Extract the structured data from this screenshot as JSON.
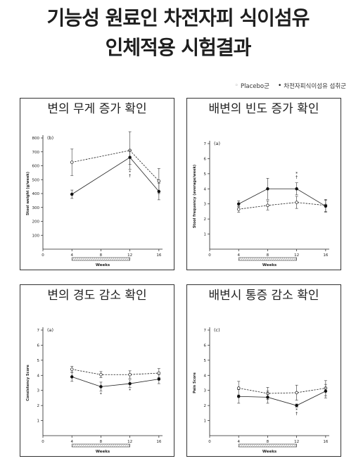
{
  "header": {
    "title_line1": "기능성 원료인 차전자피 식이섬유",
    "title_line2": "인체적용 시험결과"
  },
  "legend": {
    "placebo_marker": "◦",
    "placebo_label": "Placebo군",
    "treatment_marker": "•",
    "treatment_label": "차전자피식이섬유 섭취군"
  },
  "panels": [
    {
      "title": "변의 무게 증가 확인"
    },
    {
      "title": "배변의 빈도 증가 확인"
    },
    {
      "title": "변의 경도 감소 확인"
    },
    {
      "title": "배변시 통증 감소 확인"
    }
  ],
  "chart_data": [
    {
      "type": "line",
      "panel_label": "(b)",
      "xlabel": "Weeks",
      "ylabel": "Stool weight (g/week)",
      "xticks": [
        0,
        4,
        8,
        12,
        16
      ],
      "yticks": [
        100,
        200,
        300,
        400,
        500,
        600,
        700,
        800
      ],
      "xlim": [
        0,
        16.5
      ],
      "ylim": [
        0,
        800
      ],
      "treatment_period": [
        4,
        12
      ],
      "series": [
        {
          "name": "Placebo군",
          "marker": "open",
          "style": "dashed",
          "x": [
            4,
            12,
            16
          ],
          "y": [
            625,
            710,
            490
          ],
          "err": [
            95,
            135,
            90
          ]
        },
        {
          "name": "차전자피식이섬유 섭취군",
          "marker": "filled",
          "style": "solid",
          "x": [
            4,
            12,
            16
          ],
          "y": [
            395,
            660,
            415
          ],
          "err": [
            30,
            50,
            60
          ]
        }
      ],
      "annotations": [
        {
          "x": 12,
          "text": "*",
          "dy": 0
        },
        {
          "x": 12,
          "text": "†",
          "dy": 1
        }
      ]
    },
    {
      "type": "line",
      "panel_label": "(a)",
      "xlabel": "Weeks",
      "ylabel": "Stool frequency (average/week)",
      "xticks": [
        0,
        4,
        8,
        12,
        16
      ],
      "yticks": [
        1,
        2,
        3,
        4,
        5,
        6,
        7
      ],
      "xlim": [
        0,
        16.5
      ],
      "ylim": [
        0,
        7
      ],
      "treatment_period": [
        4,
        12
      ],
      "series": [
        {
          "name": "Placebo군",
          "marker": "open",
          "style": "dashed",
          "x": [
            4,
            8,
            12,
            16
          ],
          "y": [
            2.65,
            2.9,
            3.1,
            2.9
          ],
          "err": [
            0.2,
            0.3,
            0.4,
            0.4
          ]
        },
        {
          "name": "차전자피식이섬유 섭취군",
          "marker": "filled",
          "style": "solid",
          "x": [
            4,
            8,
            12,
            16
          ],
          "y": [
            3.0,
            4.0,
            4.0,
            2.85
          ],
          "err": [
            0.2,
            0.7,
            0.4,
            0.4
          ]
        }
      ],
      "annotations": [
        {
          "x": 12,
          "text": "*",
          "dy": -2
        },
        {
          "x": 12,
          "text": "†",
          "dy": -1
        }
      ]
    },
    {
      "type": "line",
      "panel_label": "(a)",
      "xlabel": "Weeks",
      "ylabel": "Consistency Score",
      "xticks": [
        0,
        4,
        8,
        12,
        16
      ],
      "yticks": [
        1,
        2,
        3,
        4,
        5,
        6,
        7
      ],
      "xlim": [
        0,
        16.5
      ],
      "ylim": [
        0,
        7
      ],
      "treatment_period": [
        4,
        12
      ],
      "series": [
        {
          "name": "Placebo군",
          "marker": "open",
          "style": "dashed",
          "x": [
            4,
            8,
            12,
            16
          ],
          "y": [
            4.4,
            4.05,
            4.05,
            4.15
          ],
          "err": [
            0.2,
            0.2,
            0.25,
            0.3
          ]
        },
        {
          "name": "차전자피식이섬유 섭취군",
          "marker": "filled",
          "style": "solid",
          "x": [
            4,
            8,
            12,
            16
          ],
          "y": [
            3.9,
            3.25,
            3.45,
            3.75
          ],
          "err": [
            0.3,
            0.3,
            0.25,
            0.3
          ]
        }
      ],
      "annotations": [
        {
          "x": 8,
          "text": "*",
          "dy": 0
        },
        {
          "x": 12,
          "text": "*",
          "dy": 0
        }
      ]
    },
    {
      "type": "line",
      "panel_label": "(c)",
      "xlabel": "Weeks",
      "ylabel": "Pain Score",
      "xticks": [
        0,
        4,
        8,
        12,
        16
      ],
      "yticks": [
        1,
        2,
        3,
        4,
        5,
        6,
        7
      ],
      "xlim": [
        0,
        16.5
      ],
      "ylim": [
        0,
        7
      ],
      "treatment_period": [
        4,
        12
      ],
      "series": [
        {
          "name": "Placebo군",
          "marker": "open",
          "style": "dashed",
          "x": [
            4,
            8,
            12,
            16
          ],
          "y": [
            3.15,
            2.8,
            2.85,
            3.15
          ],
          "err": [
            0.45,
            0.4,
            0.5,
            0.5
          ]
        },
        {
          "name": "차전자피식이섬유 섭취군",
          "marker": "filled",
          "style": "solid",
          "x": [
            4,
            8,
            12,
            16
          ],
          "y": [
            2.6,
            2.55,
            2.0,
            2.95
          ],
          "err": [
            0.45,
            0.4,
            0.1,
            0.45
          ]
        }
      ],
      "annotations": [
        {
          "x": 12,
          "text": "*",
          "dy": 0
        },
        {
          "x": 12,
          "text": "†",
          "dy": 1
        }
      ]
    }
  ]
}
